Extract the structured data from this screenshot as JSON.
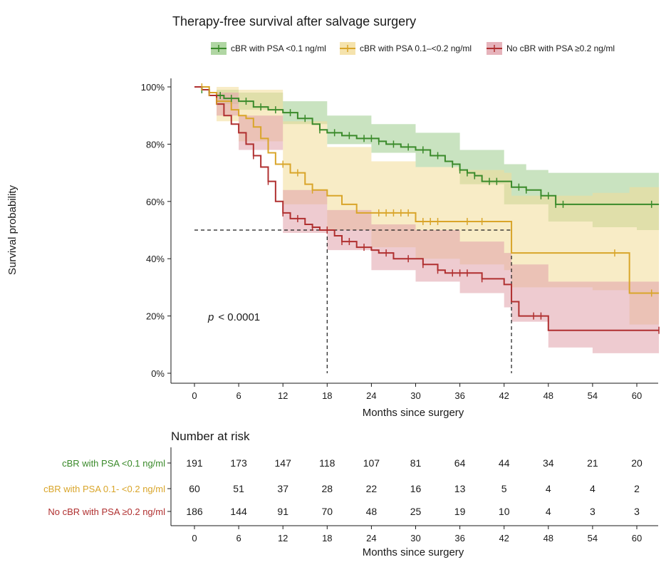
{
  "chart_data": {
    "type": "line",
    "title": "Therapy-free survival after salvage surgery",
    "xlabel": "Months since surgery",
    "ylabel": "Survival probability",
    "xlim": [
      -4,
      63
    ],
    "ylim": [
      0,
      1
    ],
    "x_ticks": [
      0,
      6,
      12,
      18,
      24,
      30,
      36,
      42,
      48,
      54,
      60
    ],
    "x_tick_labels": [
      "0",
      "6",
      "12",
      "18",
      "24",
      "30",
      "36",
      "42",
      "48",
      "54",
      "60"
    ],
    "y_ticks": [
      0,
      0.2,
      0.4,
      0.6,
      0.8,
      1.0
    ],
    "y_tick_labels": [
      "0%",
      "20%",
      "40%",
      "60%",
      "80%",
      "100%"
    ],
    "legend_position": "top",
    "grid": false,
    "annotation": {
      "p_label": "p",
      "p_value": "< 0.0001"
    },
    "median_lines": [
      {
        "x": 18,
        "y": 0.5,
        "x_from": 0
      },
      {
        "x": 43,
        "y": 0.5,
        "x_from": 18
      }
    ],
    "series": [
      {
        "name": "cBR with PSA <0.1 ng/ml",
        "color": "#3a8a2a",
        "band_color": "#9ccc8c",
        "steps": [
          [
            0,
            1.0
          ],
          [
            1,
            0.99
          ],
          [
            2,
            0.98
          ],
          [
            3,
            0.97
          ],
          [
            4,
            0.96
          ],
          [
            6,
            0.95
          ],
          [
            8,
            0.93
          ],
          [
            10,
            0.92
          ],
          [
            12,
            0.91
          ],
          [
            14,
            0.89
          ],
          [
            16,
            0.87
          ],
          [
            17,
            0.85
          ],
          [
            18,
            0.84
          ],
          [
            20,
            0.83
          ],
          [
            22,
            0.82
          ],
          [
            25,
            0.81
          ],
          [
            26,
            0.8
          ],
          [
            28,
            0.79
          ],
          [
            30,
            0.78
          ],
          [
            32,
            0.76
          ],
          [
            34,
            0.74
          ],
          [
            35,
            0.73
          ],
          [
            36,
            0.71
          ],
          [
            37,
            0.7
          ],
          [
            38,
            0.69
          ],
          [
            39,
            0.67
          ],
          [
            43,
            0.65
          ],
          [
            45,
            0.64
          ],
          [
            47,
            0.62
          ],
          [
            49,
            0.59
          ],
          [
            63,
            0.59
          ]
        ],
        "lower": [
          [
            0,
            1.0
          ],
          [
            3,
            0.94
          ],
          [
            6,
            0.92
          ],
          [
            12,
            0.87
          ],
          [
            18,
            0.8
          ],
          [
            24,
            0.77
          ],
          [
            30,
            0.72
          ],
          [
            36,
            0.66
          ],
          [
            42,
            0.59
          ],
          [
            48,
            0.53
          ],
          [
            54,
            0.51
          ],
          [
            60,
            0.5
          ],
          [
            63,
            0.49
          ]
        ],
        "upper": [
          [
            0,
            1.0
          ],
          [
            3,
            0.99
          ],
          [
            6,
            0.98
          ],
          [
            12,
            0.95
          ],
          [
            18,
            0.9
          ],
          [
            24,
            0.87
          ],
          [
            30,
            0.84
          ],
          [
            36,
            0.78
          ],
          [
            42,
            0.73
          ],
          [
            45,
            0.71
          ],
          [
            48,
            0.7
          ],
          [
            54,
            0.7
          ],
          [
            60,
            0.7
          ],
          [
            63,
            0.7
          ]
        ],
        "censor_x": [
          1,
          2,
          3.5,
          5,
          7,
          9,
          11,
          13,
          15,
          17,
          19,
          21,
          23,
          24,
          25,
          27,
          29,
          31,
          33,
          35,
          36,
          37,
          38,
          40,
          41,
          44,
          45,
          47,
          48,
          49,
          50,
          62
        ]
      },
      {
        "name": "cBR with PSA 0.1–<0.2 ng/ml",
        "color": "#d9a52a",
        "band_color": "#f2dc98",
        "steps": [
          [
            0,
            1.0
          ],
          [
            2,
            0.98
          ],
          [
            3,
            0.95
          ],
          [
            5,
            0.92
          ],
          [
            6,
            0.9
          ],
          [
            7,
            0.89
          ],
          [
            8,
            0.86
          ],
          [
            9,
            0.82
          ],
          [
            10,
            0.77
          ],
          [
            11,
            0.73
          ],
          [
            13,
            0.7
          ],
          [
            15,
            0.66
          ],
          [
            16,
            0.64
          ],
          [
            18,
            0.62
          ],
          [
            20,
            0.59
          ],
          [
            22,
            0.56
          ],
          [
            30,
            0.53
          ],
          [
            43,
            0.42
          ],
          [
            59,
            0.28
          ],
          [
            63,
            0.28
          ]
        ],
        "lower": [
          [
            0,
            1.0
          ],
          [
            3,
            0.88
          ],
          [
            6,
            0.81
          ],
          [
            12,
            0.59
          ],
          [
            18,
            0.5
          ],
          [
            24,
            0.44
          ],
          [
            30,
            0.4
          ],
          [
            36,
            0.38
          ],
          [
            42,
            0.36
          ],
          [
            43,
            0.3
          ],
          [
            48,
            0.3
          ],
          [
            54,
            0.29
          ],
          [
            59,
            0.17
          ],
          [
            63,
            0.1
          ]
        ],
        "upper": [
          [
            0,
            1.0
          ],
          [
            3,
            1.0
          ],
          [
            6,
            0.99
          ],
          [
            12,
            0.88
          ],
          [
            18,
            0.79
          ],
          [
            24,
            0.74
          ],
          [
            30,
            0.72
          ],
          [
            36,
            0.71
          ],
          [
            42,
            0.7
          ],
          [
            43,
            0.62
          ],
          [
            48,
            0.62
          ],
          [
            54,
            0.63
          ],
          [
            59,
            0.65
          ],
          [
            63,
            0.73
          ]
        ],
        "censor_x": [
          1,
          2,
          3,
          12,
          14,
          16,
          25,
          26,
          27,
          28,
          29,
          31,
          32,
          33,
          37,
          39,
          57,
          62
        ]
      },
      {
        "name": "No cBR with PSA ≥0.2 ng/ml",
        "color": "#b03030",
        "band_color": "#e0a0aa",
        "steps": [
          [
            0,
            1.0
          ],
          [
            1,
            0.99
          ],
          [
            2,
            0.97
          ],
          [
            3,
            0.94
          ],
          [
            4,
            0.9
          ],
          [
            5,
            0.87
          ],
          [
            6,
            0.84
          ],
          [
            7,
            0.8
          ],
          [
            8,
            0.76
          ],
          [
            9,
            0.72
          ],
          [
            10,
            0.67
          ],
          [
            11,
            0.6
          ],
          [
            12,
            0.56
          ],
          [
            13,
            0.54
          ],
          [
            15,
            0.52
          ],
          [
            16,
            0.51
          ],
          [
            17,
            0.5
          ],
          [
            19,
            0.48
          ],
          [
            20,
            0.46
          ],
          [
            22,
            0.44
          ],
          [
            24,
            0.43
          ],
          [
            25,
            0.42
          ],
          [
            27,
            0.4
          ],
          [
            31,
            0.38
          ],
          [
            33,
            0.36
          ],
          [
            34,
            0.35
          ],
          [
            39,
            0.33
          ],
          [
            42,
            0.31
          ],
          [
            43,
            0.25
          ],
          [
            44,
            0.2
          ],
          [
            48,
            0.15
          ],
          [
            63,
            0.15
          ]
        ],
        "lower": [
          [
            0,
            1.0
          ],
          [
            3,
            0.9
          ],
          [
            6,
            0.78
          ],
          [
            12,
            0.49
          ],
          [
            18,
            0.43
          ],
          [
            24,
            0.36
          ],
          [
            30,
            0.32
          ],
          [
            36,
            0.28
          ],
          [
            42,
            0.23
          ],
          [
            43,
            0.18
          ],
          [
            48,
            0.09
          ],
          [
            54,
            0.07
          ],
          [
            60,
            0.07
          ],
          [
            63,
            0.07
          ]
        ],
        "upper": [
          [
            0,
            1.0
          ],
          [
            3,
            0.98
          ],
          [
            6,
            0.9
          ],
          [
            12,
            0.64
          ],
          [
            18,
            0.57
          ],
          [
            24,
            0.52
          ],
          [
            30,
            0.5
          ],
          [
            36,
            0.46
          ],
          [
            42,
            0.42
          ],
          [
            43,
            0.38
          ],
          [
            48,
            0.32
          ],
          [
            54,
            0.32
          ],
          [
            60,
            0.32
          ],
          [
            63,
            0.32
          ]
        ],
        "censor_x": [
          8,
          10,
          12,
          14,
          16,
          18,
          20,
          21,
          23,
          26,
          29,
          31,
          33,
          35,
          36,
          37,
          39,
          46,
          47,
          63
        ]
      }
    ]
  },
  "risk_table": {
    "title": "Number at risk",
    "xlabel": "Months since surgery",
    "x_ticks": [
      0,
      6,
      12,
      18,
      24,
      30,
      36,
      42,
      48,
      54,
      60
    ],
    "x_tick_labels": [
      "0",
      "6",
      "12",
      "18",
      "24",
      "30",
      "36",
      "42",
      "48",
      "54",
      "60"
    ],
    "rows": [
      {
        "label": "cBR with PSA <0.1 ng/ml",
        "color": "#3a8a2a",
        "values": [
          "191",
          "173",
          "147",
          "118",
          "107",
          "81",
          "64",
          "44",
          "34",
          "21",
          "20"
        ]
      },
      {
        "label": "cBR with PSA 0.1- <0.2 ng/ml",
        "color": "#d9a52a",
        "values": [
          "60",
          "51",
          "37",
          "28",
          "22",
          "16",
          "13",
          "5",
          "4",
          "4",
          "2"
        ]
      },
      {
        "label": "No cBR with PSA ≥0.2 ng/ml",
        "color": "#b03030",
        "values": [
          "186",
          "144",
          "91",
          "70",
          "48",
          "25",
          "19",
          "10",
          "4",
          "3",
          "3"
        ]
      }
    ]
  }
}
